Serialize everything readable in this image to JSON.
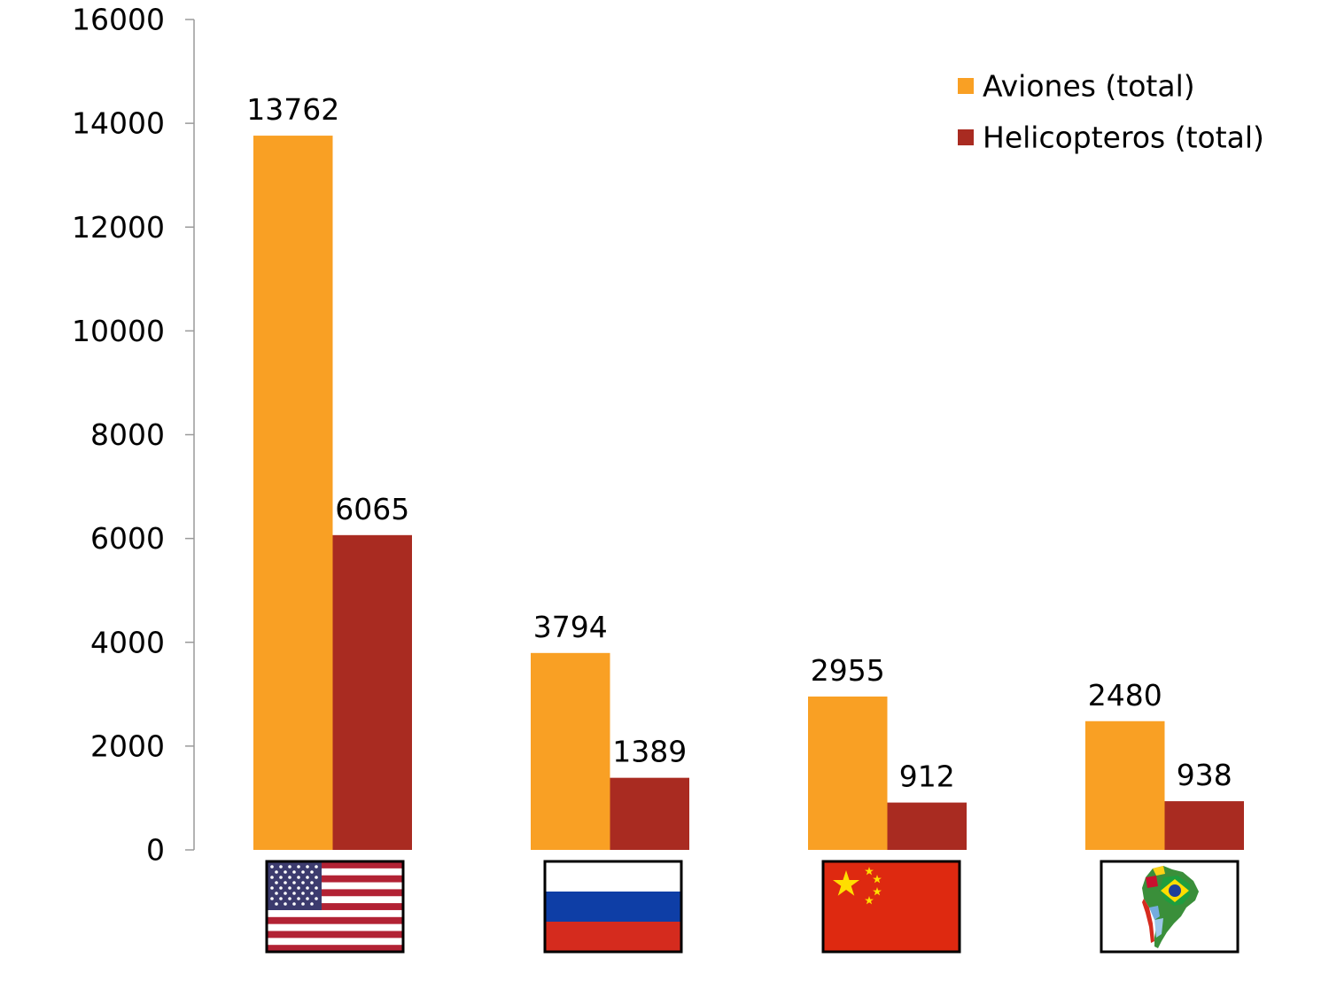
{
  "chart_data": {
    "type": "bar",
    "categories": [
      "USA",
      "Russia",
      "China",
      "South America"
    ],
    "category_icons": [
      "usa-flag-icon",
      "russia-flag-icon",
      "china-flag-icon",
      "south-america-map-icon"
    ],
    "series": [
      {
        "name": "Aviones (total)",
        "values": [
          13762,
          3794,
          2955,
          2480
        ],
        "color": "#F9A024"
      },
      {
        "name": "Helicopteros (total)",
        "values": [
          6065,
          1389,
          912,
          938
        ],
        "color": "#A92B21"
      }
    ],
    "ylim": [
      0,
      16000
    ],
    "y_ticks": [
      0,
      2000,
      4000,
      6000,
      8000,
      10000,
      12000,
      14000,
      16000
    ],
    "grid": false,
    "legend_position": "top-right",
    "xlabel": "",
    "ylabel": "",
    "title": ""
  }
}
